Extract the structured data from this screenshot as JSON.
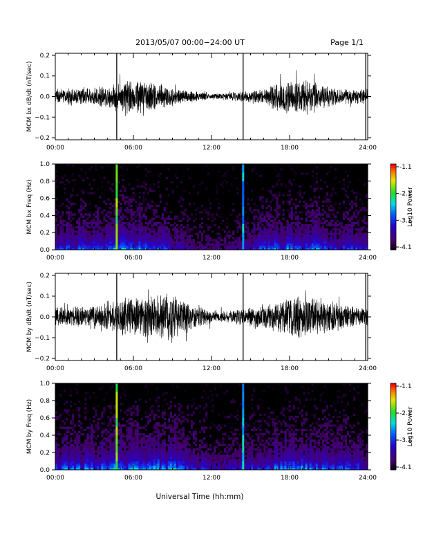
{
  "header": {
    "title": "2013/05/07  00:00−24:00 UT",
    "page": "Page 1/1"
  },
  "xaxis_label": "Universal Time (hh:mm)",
  "colorbar": {
    "label": "Log10 Power",
    "ticks": [
      "-1.1",
      "-2.1",
      "-3.1",
      "-4.1"
    ]
  },
  "chart_data": [
    {
      "type": "line",
      "ylabel": "MCM bx dB/dt (nT/sec)",
      "x_ticks": [
        "00:00",
        "06:00",
        "12:00",
        "18:00",
        "24:00"
      ],
      "y_ticks": [
        "0.2",
        "0.1",
        "0.0",
        "−0.1",
        "−0.2"
      ],
      "ylim": [
        -0.21,
        0.21
      ],
      "x_range_hours": [
        0,
        24
      ],
      "grid": false,
      "noise_envelope": [
        {
          "t": 0,
          "amp": 0.03
        },
        {
          "t": 3,
          "amp": 0.035
        },
        {
          "t": 4.7,
          "amp": 0.05
        },
        {
          "t": 5.5,
          "amp": 0.07
        },
        {
          "t": 7.5,
          "amp": 0.06
        },
        {
          "t": 9.5,
          "amp": 0.03
        },
        {
          "t": 12,
          "amp": 0.012
        },
        {
          "t": 14.5,
          "amp": 0.02
        },
        {
          "t": 16,
          "amp": 0.03
        },
        {
          "t": 17.5,
          "amp": 0.07
        },
        {
          "t": 19.5,
          "amp": 0.06
        },
        {
          "t": 22,
          "amp": 0.03
        },
        {
          "t": 24,
          "amp": 0.03
        }
      ],
      "spikes": [
        {
          "t": 4.72,
          "min": -0.21,
          "max": 0.21
        },
        {
          "t": 14.43,
          "min": -0.21,
          "max": 0.21
        },
        {
          "t": 23.85,
          "min": -0.21,
          "max": 0.21
        }
      ]
    },
    {
      "type": "heatmap",
      "ylabel": "MCM bx Freq (Hz)",
      "x_ticks": [
        "00:00",
        "06:00",
        "12:00",
        "18:00",
        "24:00"
      ],
      "y_ticks": [
        "1.0",
        "0.8",
        "0.6",
        "0.4",
        "0.2",
        "0.0"
      ],
      "ylim": [
        0,
        1
      ],
      "colorscale_range": [
        -4.1,
        -1.1
      ],
      "activity": [
        {
          "t": 0,
          "level": 0.5
        },
        {
          "t": 3,
          "level": 0.55
        },
        {
          "t": 4.5,
          "level": 0.65
        },
        {
          "t": 6,
          "level": 0.7
        },
        {
          "t": 8,
          "level": 0.6
        },
        {
          "t": 10,
          "level": 0.3
        },
        {
          "t": 12,
          "level": 0.2
        },
        {
          "t": 14,
          "level": 0.3
        },
        {
          "t": 16,
          "level": 0.55
        },
        {
          "t": 18,
          "level": 0.65
        },
        {
          "t": 20,
          "level": 0.6
        },
        {
          "t": 22,
          "level": 0.5
        },
        {
          "t": 24,
          "level": 0.45
        }
      ],
      "broadband_lines": [
        {
          "t": 4.72,
          "log_power": -1.6
        },
        {
          "t": 14.43,
          "log_power": -2.4
        }
      ]
    },
    {
      "type": "line",
      "ylabel": "MCM by dB/dt (nT/sec)",
      "x_ticks": [
        "00:00",
        "06:00",
        "12:00",
        "18:00",
        "24:00"
      ],
      "y_ticks": [
        "0.2",
        "0.1",
        "0.0",
        "−0.1",
        "−0.2"
      ],
      "ylim": [
        -0.21,
        0.21
      ],
      "x_range_hours": [
        0,
        24
      ],
      "grid": false,
      "noise_envelope": [
        {
          "t": 0,
          "amp": 0.035
        },
        {
          "t": 3,
          "amp": 0.05
        },
        {
          "t": 4.7,
          "amp": 0.07
        },
        {
          "t": 6,
          "amp": 0.08
        },
        {
          "t": 9,
          "amp": 0.09
        },
        {
          "t": 11,
          "amp": 0.04
        },
        {
          "t": 12.5,
          "amp": 0.02
        },
        {
          "t": 15,
          "amp": 0.04
        },
        {
          "t": 17,
          "amp": 0.06
        },
        {
          "t": 19,
          "amp": 0.09
        },
        {
          "t": 21,
          "amp": 0.06
        },
        {
          "t": 24,
          "amp": 0.035
        }
      ],
      "spikes": [
        {
          "t": 4.72,
          "min": -0.21,
          "max": 0.21
        },
        {
          "t": 14.43,
          "min": -0.21,
          "max": 0.21
        },
        {
          "t": 23.85,
          "min": -0.21,
          "max": 0.21
        }
      ]
    },
    {
      "type": "heatmap",
      "ylabel": "MCM by Freq (Hz)",
      "x_ticks": [
        "00:00",
        "06:00",
        "12:00",
        "18:00",
        "24:00"
      ],
      "y_ticks": [
        "1.0",
        "0.8",
        "0.6",
        "0.4",
        "0.2",
        "0.0"
      ],
      "ylim": [
        0,
        1
      ],
      "colorscale_range": [
        -4.1,
        -1.1
      ],
      "activity": [
        {
          "t": 0,
          "level": 0.55
        },
        {
          "t": 3,
          "level": 0.6
        },
        {
          "t": 4.5,
          "level": 0.7
        },
        {
          "t": 6,
          "level": 0.7
        },
        {
          "t": 9,
          "level": 0.75
        },
        {
          "t": 11,
          "level": 0.45
        },
        {
          "t": 12.5,
          "level": 0.35
        },
        {
          "t": 15,
          "level": 0.45
        },
        {
          "t": 17,
          "level": 0.6
        },
        {
          "t": 19,
          "level": 0.7
        },
        {
          "t": 21,
          "level": 0.6
        },
        {
          "t": 24,
          "level": 0.5
        }
      ],
      "broadband_lines": [
        {
          "t": 4.72,
          "log_power": -1.6
        },
        {
          "t": 14.43,
          "log_power": -2.3
        }
      ]
    }
  ]
}
